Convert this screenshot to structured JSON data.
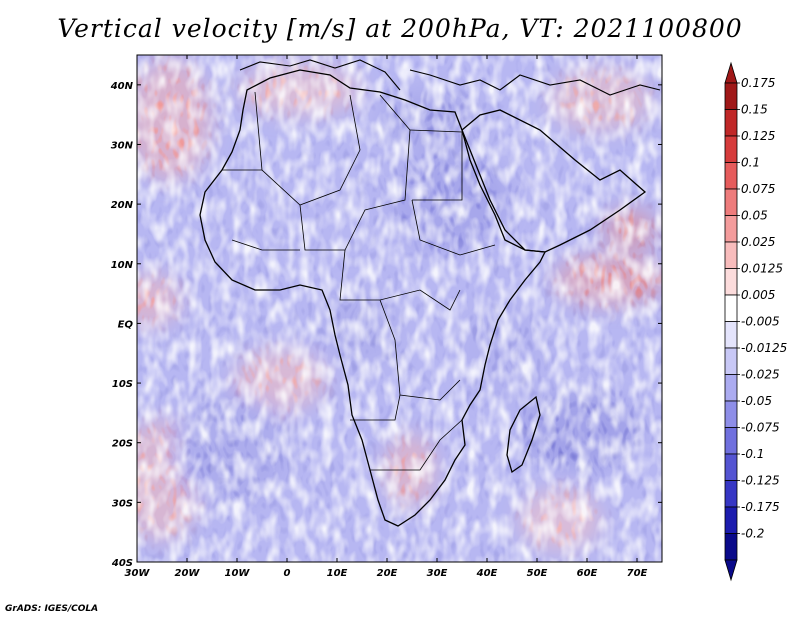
{
  "title": "Vertical velocity [m/s] at 200hPa, VT: 2021100800",
  "credit": "GrADS: IGES/COLA",
  "map": {
    "lon_range": [
      -30,
      75
    ],
    "lat_range": [
      -40,
      45
    ],
    "lon_ticks": [
      "30W",
      "20W",
      "10W",
      "0",
      "10E",
      "20E",
      "30E",
      "40E",
      "50E",
      "60E",
      "70E"
    ],
    "lat_ticks": [
      "40N",
      "30N",
      "20N",
      "10N",
      "EQ",
      "10S",
      "20S",
      "30S",
      "40S"
    ],
    "region": "Africa",
    "colors": {
      "upward": "#c02828",
      "downward": "#3030c0",
      "near_zero": "#ffffff",
      "coastline": "#000000"
    }
  },
  "colorbar": {
    "levels": [
      "0.175",
      "0.15",
      "0.125",
      "0.1",
      "0.075",
      "0.05",
      "0.025",
      "0.0125",
      "0.005",
      "-0.005",
      "-0.0125",
      "-0.025",
      "-0.05",
      "-0.075",
      "-0.1",
      "-0.125",
      "-0.175",
      "-0.2"
    ],
    "colors": [
      "#a01818",
      "#c02828",
      "#d63c3c",
      "#e65c5c",
      "#ee7c7c",
      "#f49c9c",
      "#f8bcbc",
      "#fcdcdc",
      "#ffffff",
      "#e4e4fc",
      "#c8c8f6",
      "#ababf0",
      "#8e8ee8",
      "#7070de",
      "#5454d2",
      "#3636c4",
      "#1c1cae",
      "#0a0a8a"
    ]
  }
}
